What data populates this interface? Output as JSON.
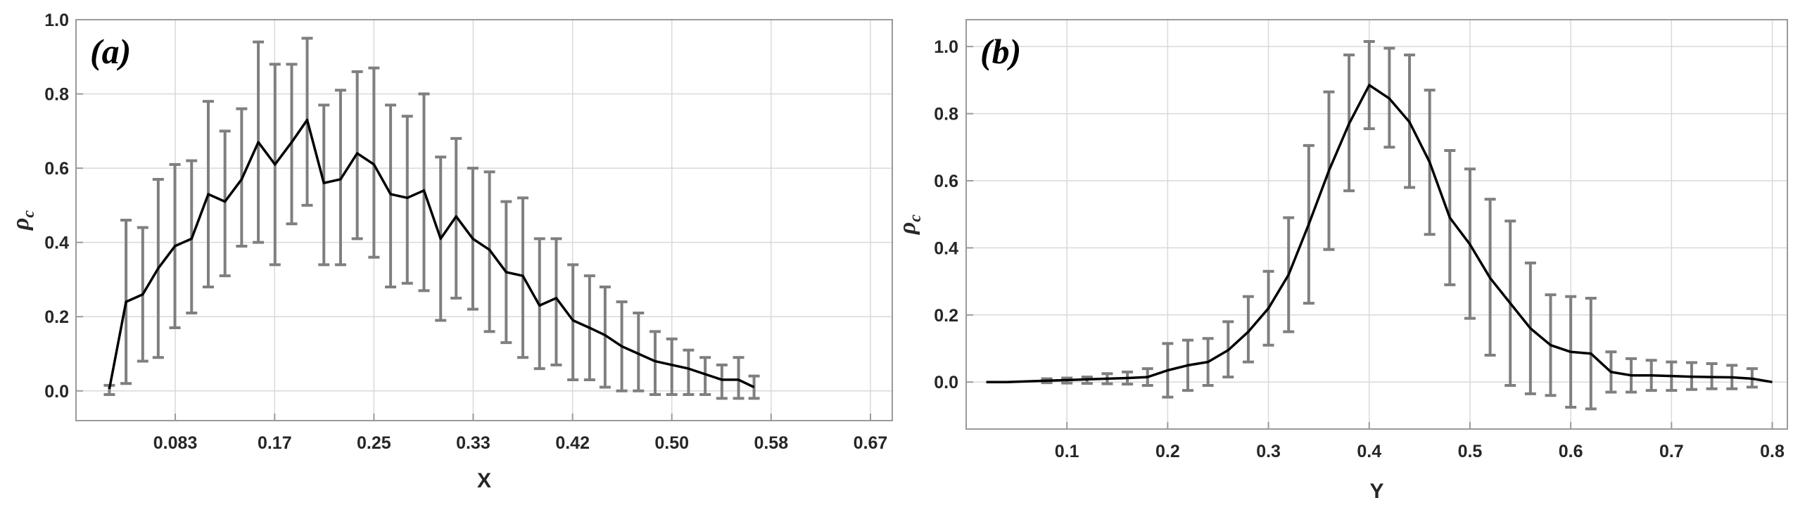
{
  "colors": {
    "line": "#000000",
    "errorbar": "#7f7f7f",
    "grid": "#d9d9d9",
    "frame": "#9a9a9a"
  },
  "chart_data": [
    {
      "type": "line",
      "panel_label": "(a)",
      "xlabel": "X",
      "ylabel_main": "ρ",
      "ylabel_sub": "c",
      "xlim": [
        0.0,
        0.685
      ],
      "ylim": [
        -0.08,
        1.0
      ],
      "xticks": [
        0.0833,
        0.1667,
        0.25,
        0.3333,
        0.4167,
        0.5,
        0.5833,
        0.6667
      ],
      "xtick_labels": [
        "0.083",
        "0.17",
        "0.25",
        "0.33",
        "0.42",
        "0.50",
        "0.58",
        "0.67"
      ],
      "yticks": [
        0.0,
        0.2,
        0.4,
        0.6,
        0.8,
        1.0
      ],
      "ytick_labels": [
        "0.0",
        "0.2",
        "0.4",
        "0.6",
        "0.8",
        "1.0"
      ],
      "grid": true,
      "x": [
        0.028,
        0.042,
        0.056,
        0.069,
        0.083,
        0.097,
        0.111,
        0.125,
        0.139,
        0.153,
        0.167,
        0.181,
        0.194,
        0.208,
        0.222,
        0.236,
        0.25,
        0.264,
        0.278,
        0.292,
        0.306,
        0.319,
        0.333,
        0.347,
        0.361,
        0.375,
        0.389,
        0.403,
        0.417,
        0.431,
        0.444,
        0.458,
        0.472,
        0.486,
        0.5,
        0.514,
        0.528,
        0.542,
        0.556,
        0.569,
        0.583,
        0.597,
        0.611,
        0.625,
        0.639,
        0.653,
        0.667
      ],
      "y": [
        0.005,
        0.24,
        0.26,
        0.33,
        0.39,
        0.41,
        0.53,
        0.51,
        0.57,
        0.67,
        0.61,
        0.67,
        0.73,
        0.56,
        0.57,
        0.64,
        0.61,
        0.53,
        0.52,
        0.54,
        0.41,
        0.47,
        0.41,
        0.38,
        0.32,
        0.31,
        0.23,
        0.25,
        0.19,
        0.17,
        0.15,
        0.12,
        0.1,
        0.08,
        0.07,
        0.06,
        0.045,
        0.03,
        0.03,
        0.01,
        null,
        null,
        null,
        null,
        null,
        null,
        null
      ],
      "yerr_low": [
        -0.01,
        0.02,
        0.08,
        0.09,
        0.17,
        0.21,
        0.28,
        0.31,
        0.39,
        0.4,
        0.34,
        0.45,
        0.5,
        0.34,
        0.34,
        0.41,
        0.36,
        0.28,
        0.29,
        0.27,
        0.19,
        0.25,
        0.22,
        0.16,
        0.13,
        0.09,
        0.06,
        0.07,
        0.03,
        0.03,
        0.01,
        0.0,
        0.0,
        -0.01,
        -0.01,
        -0.01,
        -0.01,
        -0.02,
        -0.02,
        -0.02,
        null,
        null,
        null,
        null,
        null,
        null,
        null
      ],
      "yerr_high": [
        0.015,
        0.46,
        0.44,
        0.57,
        0.61,
        0.62,
        0.78,
        0.7,
        0.76,
        0.94,
        0.88,
        0.88,
        0.95,
        0.77,
        0.81,
        0.86,
        0.87,
        0.77,
        0.74,
        0.8,
        0.63,
        0.68,
        0.6,
        0.59,
        0.51,
        0.52,
        0.41,
        0.41,
        0.34,
        0.31,
        0.28,
        0.24,
        0.21,
        0.16,
        0.14,
        0.11,
        0.09,
        0.07,
        0.09,
        0.04,
        null,
        null,
        null,
        null,
        null,
        null,
        null
      ]
    },
    {
      "type": "line",
      "panel_label": "(b)",
      "xlabel": "Y",
      "ylabel_main": "ρ",
      "ylabel_sub": "c",
      "xlim": [
        0.0,
        0.815
      ],
      "ylim": [
        -0.14,
        1.08
      ],
      "xticks": [
        0.1,
        0.2,
        0.3,
        0.4,
        0.5,
        0.6,
        0.7,
        0.8
      ],
      "xtick_labels": [
        "0.1",
        "0.2",
        "0.3",
        "0.4",
        "0.5",
        "0.6",
        "0.7",
        "0.8"
      ],
      "yticks": [
        0.0,
        0.2,
        0.4,
        0.6,
        0.8,
        1.0
      ],
      "ytick_labels": [
        "0.0",
        "0.2",
        "0.4",
        "0.6",
        "0.8",
        "1.0"
      ],
      "grid": true,
      "x": [
        0.02,
        0.04,
        0.06,
        0.08,
        0.1,
        0.12,
        0.14,
        0.16,
        0.18,
        0.2,
        0.22,
        0.24,
        0.26,
        0.28,
        0.3,
        0.32,
        0.34,
        0.36,
        0.38,
        0.4,
        0.42,
        0.44,
        0.46,
        0.48,
        0.5,
        0.52,
        0.54,
        0.56,
        0.58,
        0.6,
        0.62,
        0.64,
        0.66,
        0.68,
        0.7,
        0.72,
        0.74,
        0.76,
        0.78,
        0.8
      ],
      "y": [
        0.0,
        0.0,
        0.002,
        0.004,
        0.006,
        0.008,
        0.01,
        0.012,
        0.015,
        0.035,
        0.05,
        0.06,
        0.095,
        0.15,
        0.22,
        0.32,
        0.47,
        0.63,
        0.77,
        0.885,
        0.845,
        0.775,
        0.655,
        0.49,
        0.41,
        0.31,
        0.235,
        0.16,
        0.11,
        0.09,
        0.085,
        0.03,
        0.02,
        0.02,
        0.018,
        0.016,
        0.015,
        0.014,
        0.01,
        0.0
      ],
      "yerr_low": [
        null,
        null,
        null,
        -0.002,
        -0.003,
        -0.004,
        -0.005,
        -0.006,
        -0.01,
        -0.045,
        -0.025,
        -0.01,
        0.015,
        0.06,
        0.11,
        0.15,
        0.235,
        0.395,
        0.57,
        0.755,
        0.7,
        0.58,
        0.44,
        0.29,
        0.19,
        0.08,
        -0.01,
        -0.035,
        -0.04,
        -0.075,
        -0.08,
        -0.03,
        -0.03,
        -0.025,
        -0.025,
        -0.022,
        -0.02,
        -0.02,
        -0.015,
        null
      ],
      "yerr_high": [
        null,
        null,
        null,
        0.01,
        0.012,
        0.015,
        0.025,
        0.03,
        0.04,
        0.115,
        0.125,
        0.13,
        0.18,
        0.255,
        0.33,
        0.49,
        0.705,
        0.865,
        0.975,
        1.015,
        0.995,
        0.975,
        0.87,
        0.69,
        0.635,
        0.545,
        0.48,
        0.355,
        0.26,
        0.255,
        0.25,
        0.09,
        0.07,
        0.065,
        0.06,
        0.058,
        0.055,
        0.05,
        0.04,
        null
      ]
    }
  ]
}
